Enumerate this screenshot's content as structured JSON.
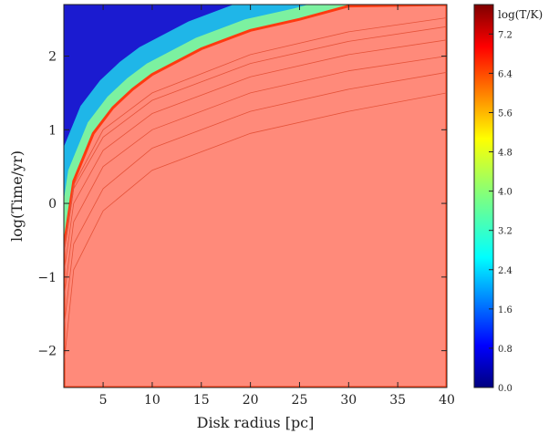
{
  "chart_data": {
    "type": "heatmap",
    "xlabel": "Disk radius [pc]",
    "ylabel": "log(Time/yr)",
    "xlim": [
      1,
      40
    ],
    "ylim": [
      -2.5,
      2.7
    ],
    "x_ticks": [
      5,
      10,
      15,
      20,
      25,
      30,
      35,
      40
    ],
    "x_tick_labels": [
      "5",
      "10",
      "15",
      "20",
      "25",
      "30",
      "35",
      "40"
    ],
    "y_ticks": [
      -2,
      -1,
      0,
      1,
      2
    ],
    "y_tick_labels": [
      "−2",
      "−1",
      "0",
      "1",
      "2"
    ],
    "colorbar": {
      "title": "log(T/K)",
      "range": [
        0.0,
        7.8
      ],
      "ticks": [
        0.0,
        0.8,
        1.6,
        2.4,
        3.2,
        4.0,
        4.8,
        5.6,
        6.4,
        7.2
      ],
      "tick_labels": [
        "0.0",
        "0.8",
        "1.6",
        "2.4",
        "3.2",
        "4.0",
        "4.8",
        "5.6",
        "6.4",
        "7.2"
      ],
      "colormap": "jet"
    },
    "temperature_regions": [
      {
        "region": "cold (dark blue)",
        "log_T": 0.0,
        "color": "#1b1bd0"
      },
      {
        "region": "cooling front (cyan-green)",
        "log_T": 3.5,
        "color": "#7cf1a0"
      },
      {
        "region": "hot (red-orange)",
        "log_T": 6.4,
        "color": "#ff8a7a"
      }
    ],
    "cooling_front": {
      "description": "Boundary between hot (red) and cooling (cyan) gas",
      "points": [
        {
          "x": 1.0,
          "y": -0.6
        },
        {
          "x": 2.0,
          "y": 0.3
        },
        {
          "x": 4.0,
          "y": 0.95
        },
        {
          "x": 6.0,
          "y": 1.3
        },
        {
          "x": 8.0,
          "y": 1.55
        },
        {
          "x": 10.0,
          "y": 1.75
        },
        {
          "x": 15.0,
          "y": 2.1
        },
        {
          "x": 20.0,
          "y": 2.35
        },
        {
          "x": 25.0,
          "y": 2.5
        },
        {
          "x": 30.0,
          "y": 2.68
        }
      ]
    },
    "contour_lines": [
      {
        "x": [
          1,
          2,
          5,
          10,
          20,
          30,
          40
        ],
        "y": [
          -2.2,
          -0.9,
          -0.1,
          0.45,
          0.95,
          1.25,
          1.5
        ]
      },
      {
        "x": [
          1,
          2,
          5,
          10,
          20,
          30,
          40
        ],
        "y": [
          -1.7,
          -0.55,
          0.2,
          0.75,
          1.25,
          1.55,
          1.78
        ]
      },
      {
        "x": [
          1,
          2,
          5,
          10,
          20,
          30,
          40
        ],
        "y": [
          -1.3,
          -0.25,
          0.5,
          1.0,
          1.5,
          1.8,
          2.0
        ]
      },
      {
        "x": [
          1,
          2,
          5,
          10,
          20,
          30,
          40
        ],
        "y": [
          -0.95,
          0.0,
          0.72,
          1.22,
          1.72,
          2.02,
          2.22
        ]
      },
      {
        "x": [
          1,
          2,
          5,
          10,
          20,
          30,
          40
        ],
        "y": [
          -0.7,
          0.2,
          0.9,
          1.4,
          1.9,
          2.2,
          2.4
        ]
      },
      {
        "x": [
          1,
          2,
          5,
          10,
          20,
          30,
          40
        ],
        "y": [
          -0.65,
          0.25,
          1.0,
          1.5,
          2.02,
          2.33,
          2.52
        ]
      }
    ]
  }
}
